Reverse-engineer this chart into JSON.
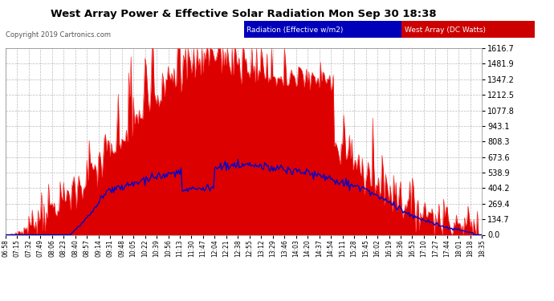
{
  "title": "West Array Power & Effective Solar Radiation Mon Sep 30 18:38",
  "copyright": "Copyright 2019 Cartronics.com",
  "legend_radiation": "Radiation (Effective w/m2)",
  "legend_west": "West Array (DC Watts)",
  "legend_radiation_bg": "#0000bb",
  "legend_west_bg": "#cc0000",
  "figure_bg": "#ffffff",
  "plot_bg": "#ffffff",
  "grid_color": "#aaaaaa",
  "red_fill_color": "#dd0000",
  "red_line_color": "#ff2222",
  "blue_line_color": "#0000cc",
  "title_color": "#000000",
  "ytick_color": "#000000",
  "xtick_color": "#000000",
  "copyright_color": "#555555",
  "ymax": 1616.7,
  "ymin": 0.0,
  "yticks": [
    0.0,
    134.7,
    269.4,
    404.2,
    538.9,
    673.6,
    808.3,
    943.1,
    1077.8,
    1212.5,
    1347.2,
    1481.9,
    1616.7
  ],
  "xtick_labels": [
    "06:58",
    "07:15",
    "07:32",
    "07:49",
    "08:06",
    "08:23",
    "08:40",
    "08:57",
    "09:14",
    "09:31",
    "09:48",
    "10:05",
    "10:22",
    "10:39",
    "10:56",
    "11:13",
    "11:30",
    "11:47",
    "12:04",
    "12:21",
    "12:38",
    "12:55",
    "13:12",
    "13:29",
    "13:46",
    "14:03",
    "14:20",
    "14:37",
    "14:54",
    "15:11",
    "15:28",
    "15:45",
    "16:02",
    "16:19",
    "16:36",
    "16:53",
    "17:10",
    "17:27",
    "17:44",
    "18:01",
    "18:18",
    "18:35"
  ],
  "figsize": [
    6.9,
    3.75
  ],
  "dpi": 100
}
